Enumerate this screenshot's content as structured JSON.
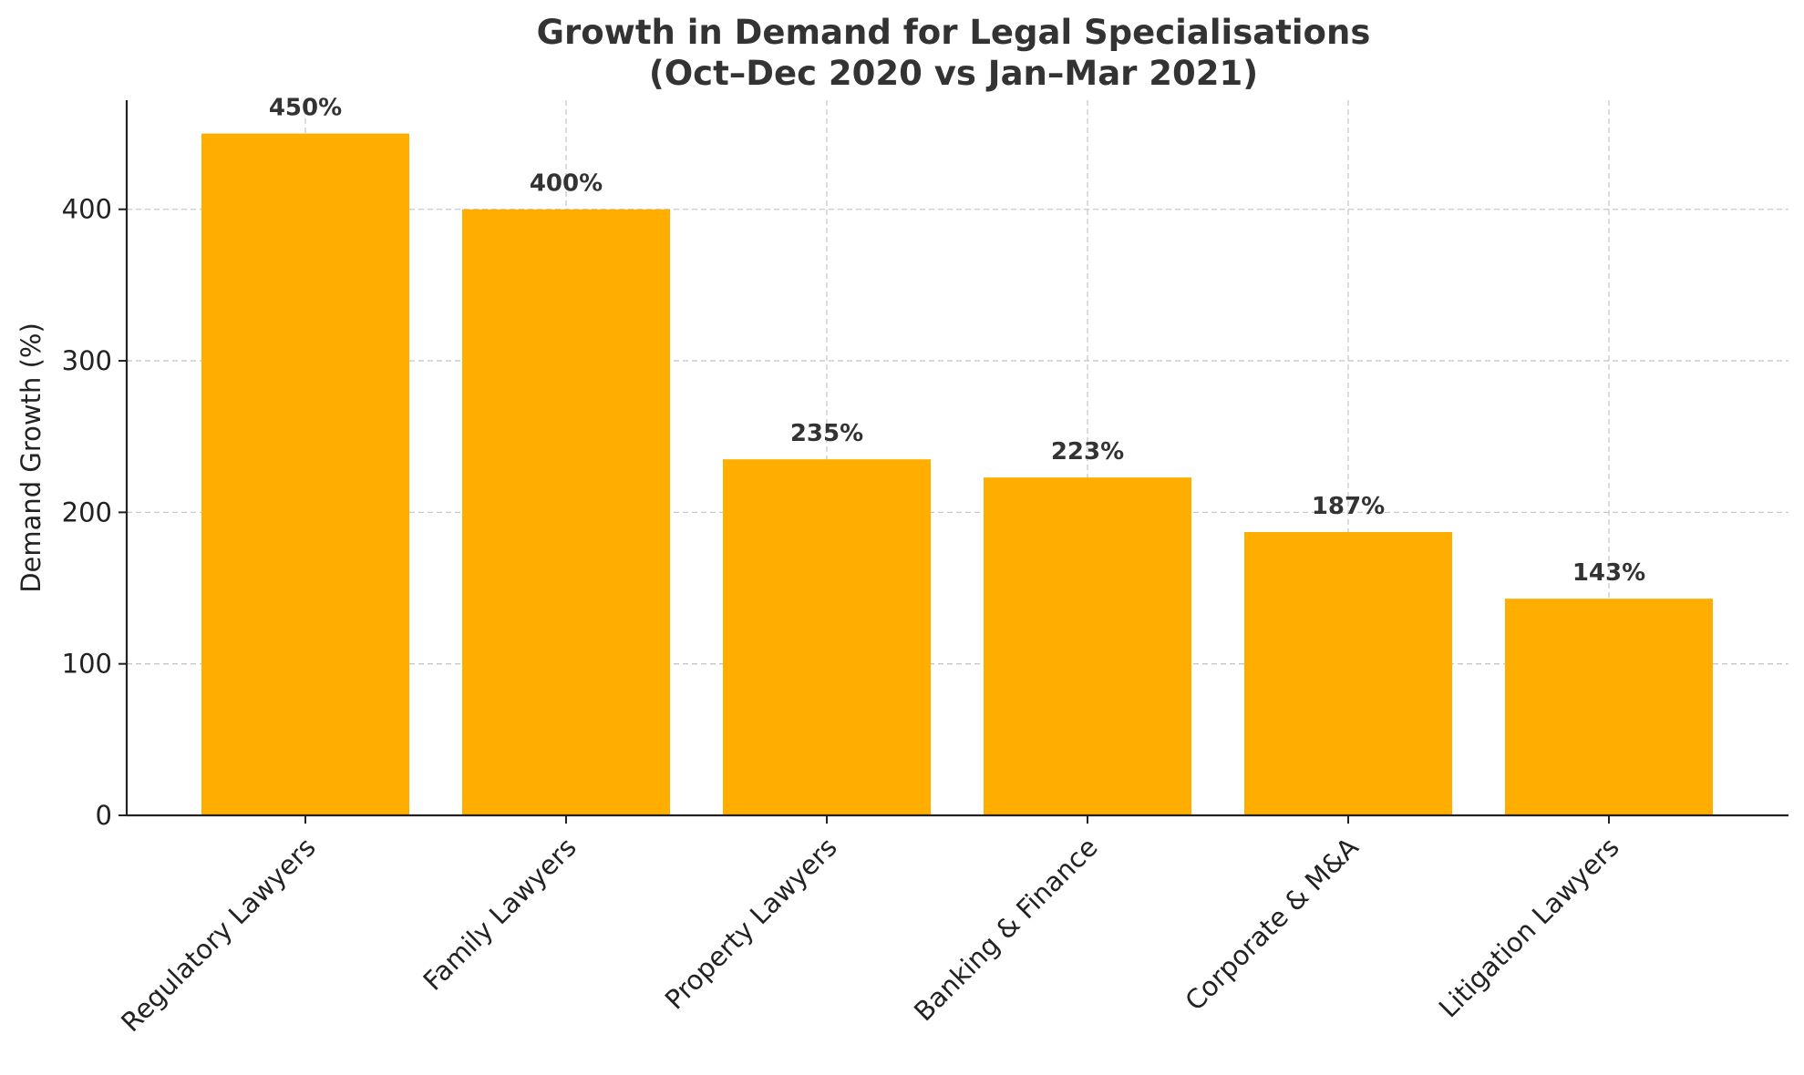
{
  "chart_data": {
    "type": "bar",
    "title_lines": [
      "Growth in Demand for Legal Specialisations",
      "(Oct–Dec 2020 vs Jan–Mar 2021)"
    ],
    "xlabel": "",
    "ylabel": "Demand Growth (%)",
    "categories": [
      "Regulatory Lawyers",
      "Family Lawyers",
      "Property Lawyers",
      "Banking & Finance",
      "Corporate & M&A",
      "Litigation Lawyers"
    ],
    "values": [
      450,
      400,
      235,
      223,
      187,
      143
    ],
    "value_labels": [
      "450%",
      "400%",
      "235%",
      "223%",
      "187%",
      "143%"
    ],
    "ylim": [
      0,
      472
    ],
    "yticks": [
      0,
      100,
      200,
      300,
      400
    ],
    "ytick_labels": [
      "0",
      "100",
      "200",
      "300",
      "400"
    ],
    "grid": true,
    "bar_color": "#FFAE00"
  }
}
